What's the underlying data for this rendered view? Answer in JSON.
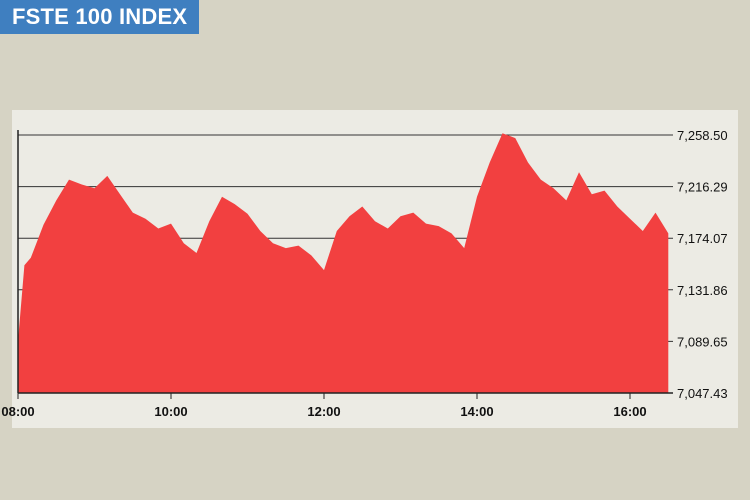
{
  "title": "FSTE 100 INDEX",
  "colors": {
    "area": "#f24040",
    "title_bg": "#3f7fc0",
    "grid": "#333333"
  },
  "chart_data": {
    "type": "area",
    "title": "FSTE 100 INDEX",
    "xlabel": "",
    "ylabel": "",
    "x_ticks": [
      "08:00",
      "10:00",
      "12:00",
      "14:00",
      "16:00"
    ],
    "y_ticks": [
      "7,258.50",
      "7,216.29",
      "7,174.07",
      "7,131.86",
      "7,089.65",
      "7,047.43"
    ],
    "y_tick_values": [
      7258.5,
      7216.29,
      7174.07,
      7131.86,
      7089.65,
      7047.43
    ],
    "ylim": [
      7047.43,
      7258.5
    ],
    "grid": true,
    "series": [
      {
        "x": [
          "08:00",
          "08:05",
          "08:10",
          "08:20",
          "08:30",
          "08:40",
          "08:50",
          "09:00",
          "09:10",
          "09:20",
          "09:30",
          "09:40",
          "09:50",
          "10:00",
          "10:10",
          "10:20",
          "10:30",
          "10:40",
          "10:50",
          "11:00",
          "11:10",
          "11:20",
          "11:30",
          "11:40",
          "11:50",
          "12:00",
          "12:10",
          "12:20",
          "12:30",
          "12:40",
          "12:50",
          "13:00",
          "13:10",
          "13:20",
          "13:30",
          "13:40",
          "13:50",
          "14:00",
          "14:10",
          "14:20",
          "14:30",
          "14:40",
          "14:50",
          "15:00",
          "15:10",
          "15:20",
          "15:30",
          "15:40",
          "15:50",
          "16:00",
          "16:10",
          "16:20",
          "16:30"
        ],
        "values": [
          7090,
          7152,
          7158,
          7185,
          7205,
          7222,
          7218,
          7215,
          7225,
          7210,
          7195,
          7190,
          7182,
          7186,
          7170,
          7162,
          7188,
          7208,
          7202,
          7194,
          7180,
          7170,
          7166,
          7168,
          7160,
          7148,
          7180,
          7192,
          7200,
          7188,
          7182,
          7192,
          7195,
          7186,
          7184,
          7178,
          7166,
          7208,
          7236,
          7260,
          7256,
          7236,
          7222,
          7215,
          7205,
          7228,
          7210,
          7213,
          7200,
          7190,
          7180,
          7195,
          7178
        ]
      }
    ]
  }
}
